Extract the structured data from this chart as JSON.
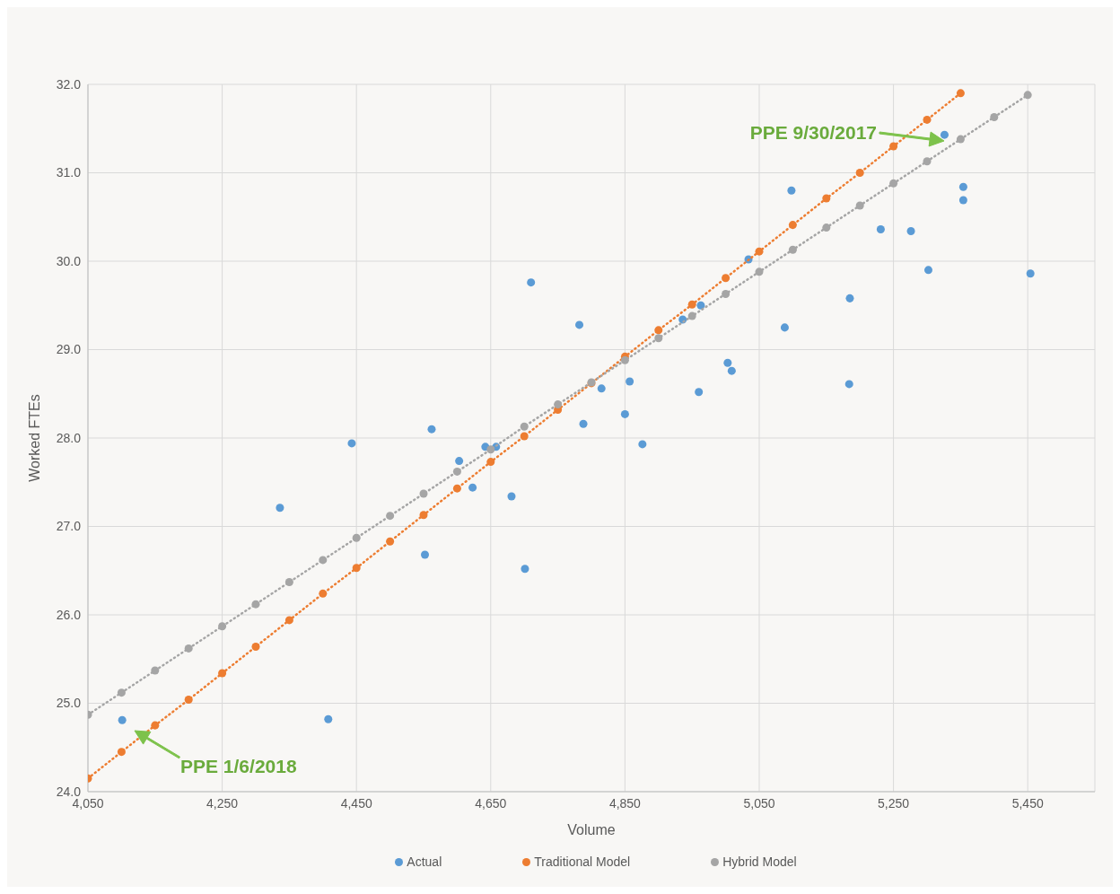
{
  "chart_data": {
    "type": "scatter",
    "xlabel": "Volume",
    "ylabel": "Worked FTEs",
    "xlim": [
      4050,
      5550
    ],
    "ylim": [
      24,
      32
    ],
    "xticks": [
      {
        "value": 4050,
        "label": "4,050"
      },
      {
        "value": 4250,
        "label": "4,250"
      },
      {
        "value": 4450,
        "label": "4,450"
      },
      {
        "value": 4650,
        "label": "4,650"
      },
      {
        "value": 4850,
        "label": "4,850"
      },
      {
        "value": 5050,
        "label": "5,050"
      },
      {
        "value": 5250,
        "label": "5,250"
      },
      {
        "value": 5450,
        "label": "5,450"
      }
    ],
    "yticks": [
      {
        "value": 24,
        "label": "24.0"
      },
      {
        "value": 25,
        "label": "25.0"
      },
      {
        "value": 26,
        "label": "26.0"
      },
      {
        "value": 27,
        "label": "27.0"
      },
      {
        "value": 28,
        "label": "28.0"
      },
      {
        "value": 29,
        "label": "29.0"
      },
      {
        "value": 30,
        "label": "30.0"
      },
      {
        "value": 31,
        "label": "31.0"
      },
      {
        "value": 32,
        "label": "32.0"
      }
    ],
    "grid": true,
    "legend": "bottom",
    "marker": "circle",
    "series": [
      {
        "name": "Actual",
        "type": "scatter",
        "color": "#5b9bd5",
        "x": [
          4101,
          4336,
          4408,
          4443,
          4552,
          4562,
          4603,
          4623,
          4642,
          4658,
          4681,
          4701,
          4710,
          4782,
          4788,
          4815,
          4850,
          4857,
          4876,
          4936,
          4960,
          4963,
          5003,
          5009,
          5034,
          5088,
          5098,
          5185,
          5184,
          5231,
          5276,
          5302,
          5326,
          5354,
          5354,
          5454
        ],
        "values": [
          24.81,
          27.21,
          24.82,
          27.94,
          26.68,
          28.1,
          27.74,
          27.44,
          27.9,
          27.9,
          27.34,
          26.52,
          29.76,
          29.28,
          28.16,
          28.56,
          28.27,
          28.64,
          27.93,
          29.34,
          28.52,
          29.5,
          28.85,
          28.76,
          30.02,
          29.25,
          30.8,
          29.58,
          28.61,
          30.36,
          30.34,
          29.9,
          31.43,
          30.84,
          30.69,
          29.86
        ]
      },
      {
        "name": "Traditional Model",
        "type": "line",
        "line_style": "dotted",
        "color": "#ed7d31",
        "x": [
          4050,
          4100,
          4150,
          4200,
          4250,
          4300,
          4350,
          4400,
          4450,
          4500,
          4550,
          4600,
          4650,
          4700,
          4750,
          4800,
          4850,
          4900,
          4950,
          5000,
          5050,
          5100,
          5150,
          5200,
          5250,
          5300,
          5350
        ],
        "values": [
          24.15,
          24.45,
          24.75,
          25.04,
          25.34,
          25.64,
          25.94,
          26.24,
          26.53,
          26.83,
          27.13,
          27.43,
          27.73,
          28.02,
          28.32,
          28.62,
          28.92,
          29.22,
          29.51,
          29.81,
          30.11,
          30.41,
          30.71,
          31.0,
          31.3,
          31.6,
          31.9
        ]
      },
      {
        "name": "Hybrid Model",
        "type": "line",
        "line_style": "dotted",
        "color": "#a5a5a5",
        "x": [
          4050,
          4100,
          4150,
          4200,
          4250,
          4300,
          4350,
          4400,
          4450,
          4500,
          4550,
          4600,
          4650,
          4700,
          4750,
          4800,
          4850,
          4900,
          4950,
          5000,
          5050,
          5100,
          5150,
          5200,
          5250,
          5300,
          5350,
          5400,
          5450
        ],
        "values": [
          24.87,
          25.12,
          25.37,
          25.62,
          25.87,
          26.12,
          26.37,
          26.62,
          26.87,
          27.12,
          27.37,
          27.62,
          27.87,
          28.13,
          28.38,
          28.63,
          28.88,
          29.13,
          29.38,
          29.63,
          29.88,
          30.13,
          30.38,
          30.63,
          30.88,
          31.13,
          31.38,
          31.63,
          31.88
        ]
      }
    ],
    "annotations": [
      "PPE 9/30/2017",
      "PPE 1/6/2018"
    ]
  }
}
